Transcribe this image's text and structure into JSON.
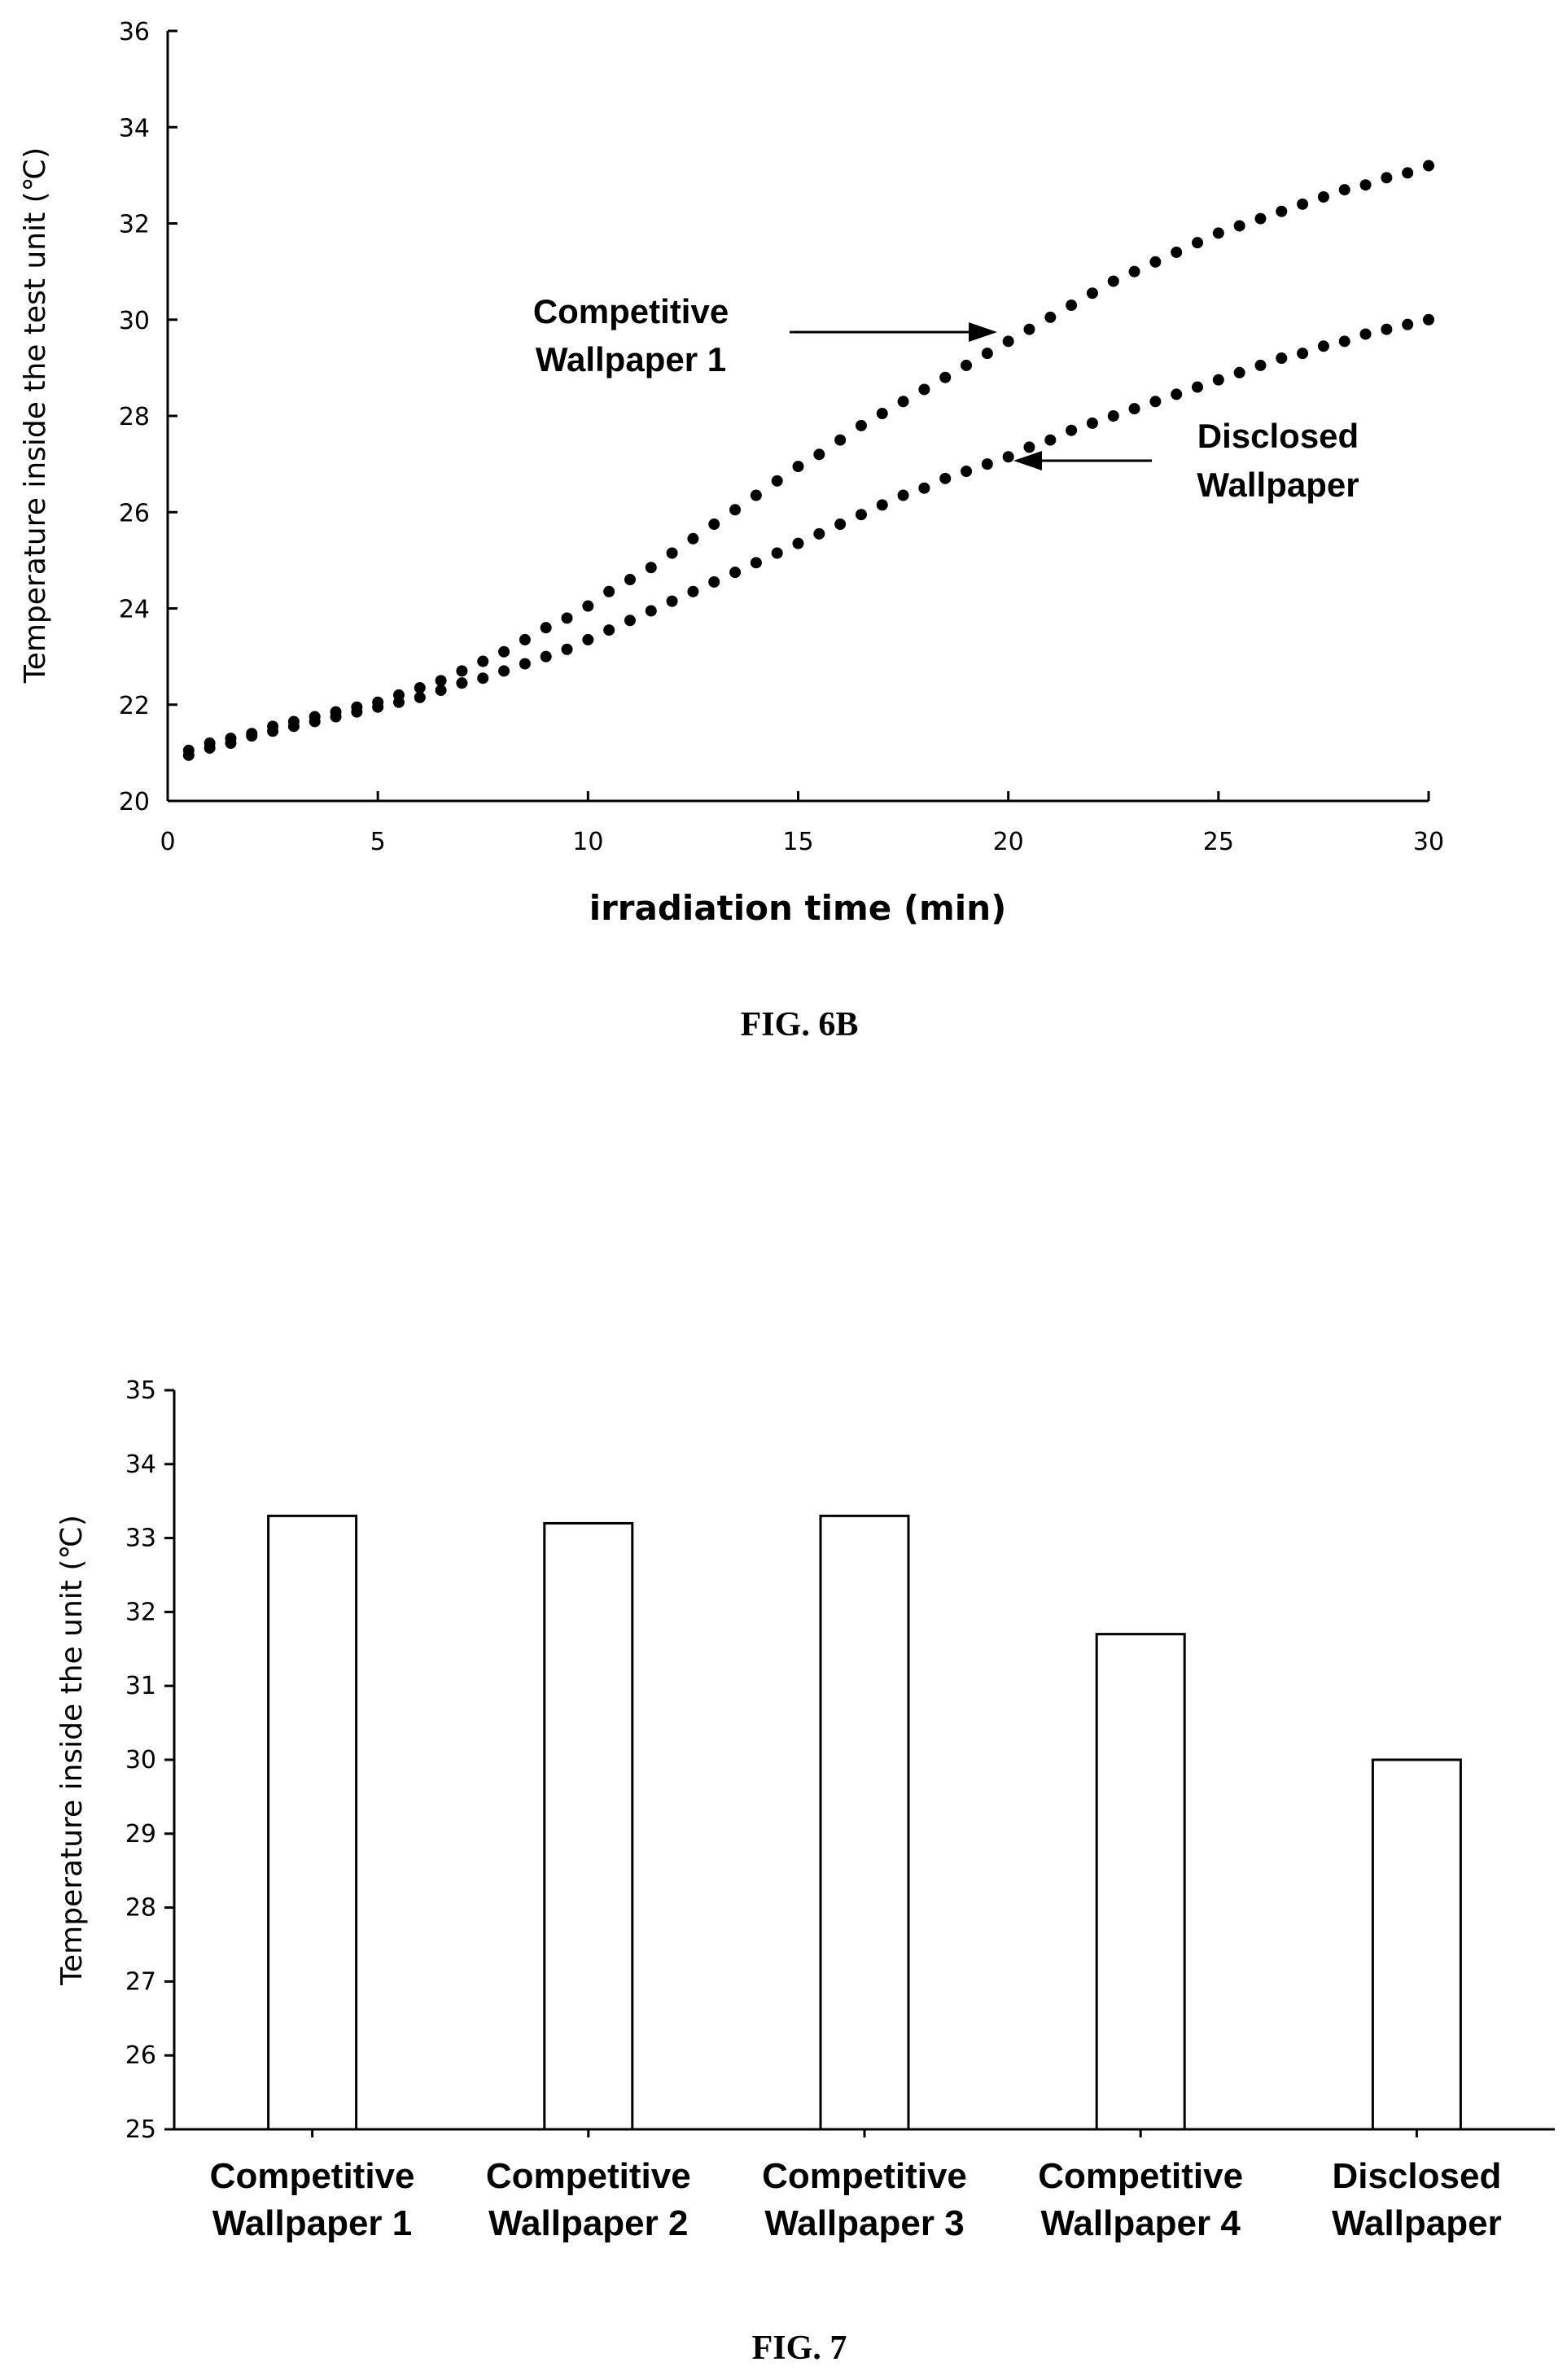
{
  "figures": {
    "fig6b_label": "FIG. 6B",
    "fig7_label": "FIG. 7"
  },
  "chart_data": [
    {
      "type": "scatter",
      "title": "",
      "xlabel": "irradiation time (min)",
      "ylabel": "Temperature inside the test unit (℃)",
      "xlim": [
        0,
        30
      ],
      "ylim": [
        20,
        36
      ],
      "xticks": [
        "0",
        "5",
        "10",
        "15",
        "20",
        "25",
        "30"
      ],
      "yticks": [
        "20",
        "22",
        "24",
        "26",
        "28",
        "30",
        "32",
        "34",
        "36"
      ],
      "grid": false,
      "annotations": [
        {
          "text_line1": "Competitive",
          "text_line2": "Wallpaper 1"
        },
        {
          "text_line1": "Disclosed",
          "text_line2": "Wallpaper"
        }
      ],
      "series": [
        {
          "name": "Competitive Wallpaper 1",
          "x": [
            0.5,
            1,
            1.5,
            2,
            2.5,
            3,
            3.5,
            4,
            4.5,
            5,
            5.5,
            6,
            6.5,
            7,
            7.5,
            8,
            8.5,
            9,
            9.5,
            10,
            10.5,
            11,
            11.5,
            12,
            12.5,
            13,
            13.5,
            14,
            14.5,
            15,
            15.5,
            16,
            16.5,
            17,
            17.5,
            18,
            18.5,
            19,
            19.5,
            20,
            20.5,
            21,
            21.5,
            22,
            22.5,
            23,
            23.5,
            24,
            24.5,
            25,
            25.5,
            26,
            26.5,
            27,
            27.5,
            28,
            28.5,
            29,
            29.5,
            30
          ],
          "y": [
            21.05,
            21.2,
            21.3,
            21.4,
            21.55,
            21.65,
            21.75,
            21.85,
            21.95,
            22.05,
            22.2,
            22.35,
            22.5,
            22.7,
            22.9,
            23.1,
            23.35,
            23.6,
            23.8,
            24.05,
            24.35,
            24.6,
            24.85,
            25.15,
            25.45,
            25.75,
            26.05,
            26.35,
            26.65,
            26.95,
            27.2,
            27.5,
            27.8,
            28.05,
            28.3,
            28.55,
            28.8,
            29.05,
            29.3,
            29.55,
            29.8,
            30.05,
            30.3,
            30.55,
            30.8,
            31.0,
            31.2,
            31.4,
            31.6,
            31.8,
            31.95,
            32.1,
            32.25,
            32.4,
            32.55,
            32.7,
            32.8,
            32.95,
            33.05,
            33.2
          ]
        },
        {
          "name": "Disclosed Wallpaper",
          "x": [
            0.5,
            1,
            1.5,
            2,
            2.5,
            3,
            3.5,
            4,
            4.5,
            5,
            5.5,
            6,
            6.5,
            7,
            7.5,
            8,
            8.5,
            9,
            9.5,
            10,
            10.5,
            11,
            11.5,
            12,
            12.5,
            13,
            13.5,
            14,
            14.5,
            15,
            15.5,
            16,
            16.5,
            17,
            17.5,
            18,
            18.5,
            19,
            19.5,
            20,
            20.5,
            21,
            21.5,
            22,
            22.5,
            23,
            23.5,
            24,
            24.5,
            25,
            25.5,
            26,
            26.5,
            27,
            27.5,
            28,
            28.5,
            29,
            29.5,
            30
          ],
          "y": [
            20.95,
            21.1,
            21.2,
            21.35,
            21.45,
            21.55,
            21.65,
            21.75,
            21.85,
            21.95,
            22.05,
            22.15,
            22.3,
            22.45,
            22.55,
            22.7,
            22.85,
            23.0,
            23.15,
            23.35,
            23.55,
            23.75,
            23.95,
            24.15,
            24.35,
            24.55,
            24.75,
            24.95,
            25.15,
            25.35,
            25.55,
            25.75,
            25.95,
            26.15,
            26.35,
            26.5,
            26.7,
            26.85,
            27.0,
            27.15,
            27.35,
            27.5,
            27.7,
            27.85,
            28.0,
            28.15,
            28.3,
            28.45,
            28.6,
            28.75,
            28.9,
            29.05,
            29.2,
            29.3,
            29.45,
            29.55,
            29.7,
            29.8,
            29.9,
            30.0
          ]
        }
      ]
    },
    {
      "type": "bar",
      "title": "",
      "xlabel": "",
      "ylabel": "Temperature inside the unit (℃)",
      "ylim": [
        25,
        35
      ],
      "yticks": [
        "25",
        "26",
        "27",
        "28",
        "29",
        "30",
        "31",
        "32",
        "33",
        "34",
        "35"
      ],
      "grid": false,
      "categories": [
        [
          "Competitive",
          "Wallpaper 1"
        ],
        [
          "Competitive",
          "Wallpaper 2"
        ],
        [
          "Competitive",
          "Wallpaper 3"
        ],
        [
          "Competitive",
          "Wallpaper 4"
        ],
        [
          "Disclosed",
          "Wallpaper"
        ]
      ],
      "values": [
        33.3,
        33.2,
        33.3,
        31.7,
        30.0
      ]
    }
  ]
}
